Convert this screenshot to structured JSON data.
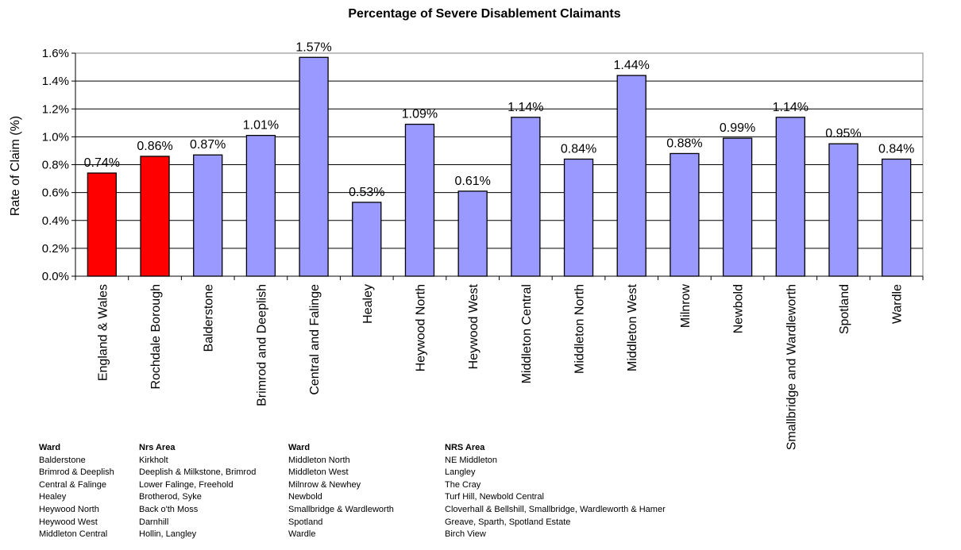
{
  "chart_data": {
    "type": "bar",
    "title": "Percentage of Severe Disablement Claimants",
    "ylabel": "Rate of Claim (%)",
    "xlabel": "",
    "ylim": [
      0,
      1.6
    ],
    "yticks": [
      "0.0%",
      "0.2%",
      "0.4%",
      "0.6%",
      "0.8%",
      "1.0%",
      "1.2%",
      "1.4%",
      "1.6%"
    ],
    "grid": true,
    "categories": [
      "England & Wales",
      "Rochdale Borough",
      "Balderstone",
      "Brimrod and Deeplish",
      "Central and Falinge",
      "Healey",
      "Heywood North",
      "Heywood West",
      "Middleton Central",
      "Middleton North",
      "Middleton West",
      "Milnrow",
      "Newbold",
      "Smallbridge and Wardleworth",
      "Spotland",
      "Wardle"
    ],
    "values": [
      0.74,
      0.86,
      0.87,
      1.01,
      1.57,
      0.53,
      1.09,
      0.61,
      1.14,
      0.84,
      1.44,
      0.88,
      0.99,
      1.14,
      0.95,
      0.84
    ],
    "data_labels": [
      "0.74%",
      "0.86%",
      "0.87%",
      "1.01%",
      "1.57%",
      "0.53%",
      "1.09%",
      "0.61%",
      "1.14%",
      "0.84%",
      "1.44%",
      "0.88%",
      "0.99%",
      "1.14%",
      "0.95%",
      "0.84%"
    ],
    "colors": [
      "#ff0000",
      "#ff0000",
      "#9999ff",
      "#9999ff",
      "#9999ff",
      "#9999ff",
      "#9999ff",
      "#9999ff",
      "#9999ff",
      "#9999ff",
      "#9999ff",
      "#9999ff",
      "#9999ff",
      "#9999ff",
      "#9999ff",
      "#9999ff"
    ]
  },
  "legend_table": {
    "left": {
      "ward_header": "Ward",
      "area_header": "Nrs Area",
      "wards": [
        "Balderstone",
        "Brimrod & Deeplish",
        "Central & Falinge",
        "Healey",
        "Heywood North",
        "Heywood West",
        "Middleton Central"
      ],
      "areas": [
        "Kirkholt",
        "Deeplish & Milkstone, Brimrod",
        "Lower Falinge, Freehold",
        "Brotherod, Syke",
        "Back o'th Moss",
        "Darnhill",
        "Hollin, Langley"
      ]
    },
    "right": {
      "ward_header": "Ward",
      "area_header": "NRS Area",
      "wards": [
        "Middleton North",
        "Middleton West",
        "Milnrow & Newhey",
        "Newbold",
        "Smallbridge & Wardleworth",
        "Spotland",
        "Wardle"
      ],
      "areas": [
        "NE Middleton",
        "Langley",
        "The Cray",
        "Turf Hill, Newbold Central",
        "Cloverhall & Bellshill, Smallbridge, Wardleworth & Hamer",
        "Greave, Sparth, Spotland Estate",
        "Birch View"
      ]
    }
  }
}
